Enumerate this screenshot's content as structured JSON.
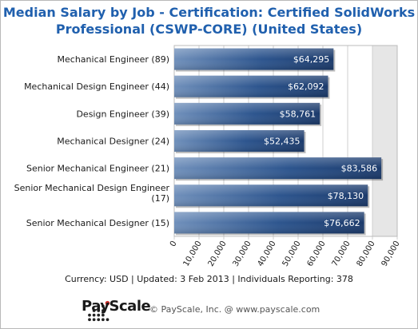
{
  "title_line1": "Median Salary by Job - Certification: Certified SolidWorks",
  "title_line2": "Professional (CSWP-CORE) (United States)",
  "footer": "Currency: USD  |  Updated: 3 Feb 2013  |  Individuals Reporting: 378",
  "logo_text": "PayScale",
  "copyright": "© PayScale, Inc. @ www.payscale.com",
  "colors": {
    "title": "#2060ae",
    "bar_dark": "#1b3a6b",
    "bar_light": "#6d8fbd",
    "shade": "#e6e6e6"
  },
  "chart_data": {
    "type": "bar",
    "orientation": "horizontal",
    "title": "Median Salary by Job - Certification: Certified SolidWorks Professional (CSWP-CORE) (United States)",
    "categories": [
      [
        "Mechanical Engineer (89)"
      ],
      [
        "Mechanical Design Engineer (44)"
      ],
      [
        "Design Engineer (39)"
      ],
      [
        "Mechanical Designer (24)"
      ],
      [
        "Senior Mechanical Engineer (21)"
      ],
      [
        "Senior Mechanical Design Engineer",
        "(17)"
      ],
      [
        "Senior Mechanical Designer (15)"
      ]
    ],
    "values": [
      64295,
      62092,
      58761,
      52435,
      83586,
      78130,
      76662
    ],
    "value_labels": [
      "$64,295",
      "$62,092",
      "$58,761",
      "$52,435",
      "$83,586",
      "$78,130",
      "$76,662"
    ],
    "xlim": [
      0,
      90000
    ],
    "ticks": [
      0,
      10000,
      20000,
      30000,
      40000,
      50000,
      60000,
      70000,
      80000,
      90000
    ],
    "tick_labels": [
      "0",
      "10,000",
      "20,000",
      "30,000",
      "40,000",
      "50,000",
      "60,000",
      "70,000",
      "80,000",
      "90,000"
    ],
    "shaded_band": [
      80000,
      90000
    ],
    "grid": true
  }
}
